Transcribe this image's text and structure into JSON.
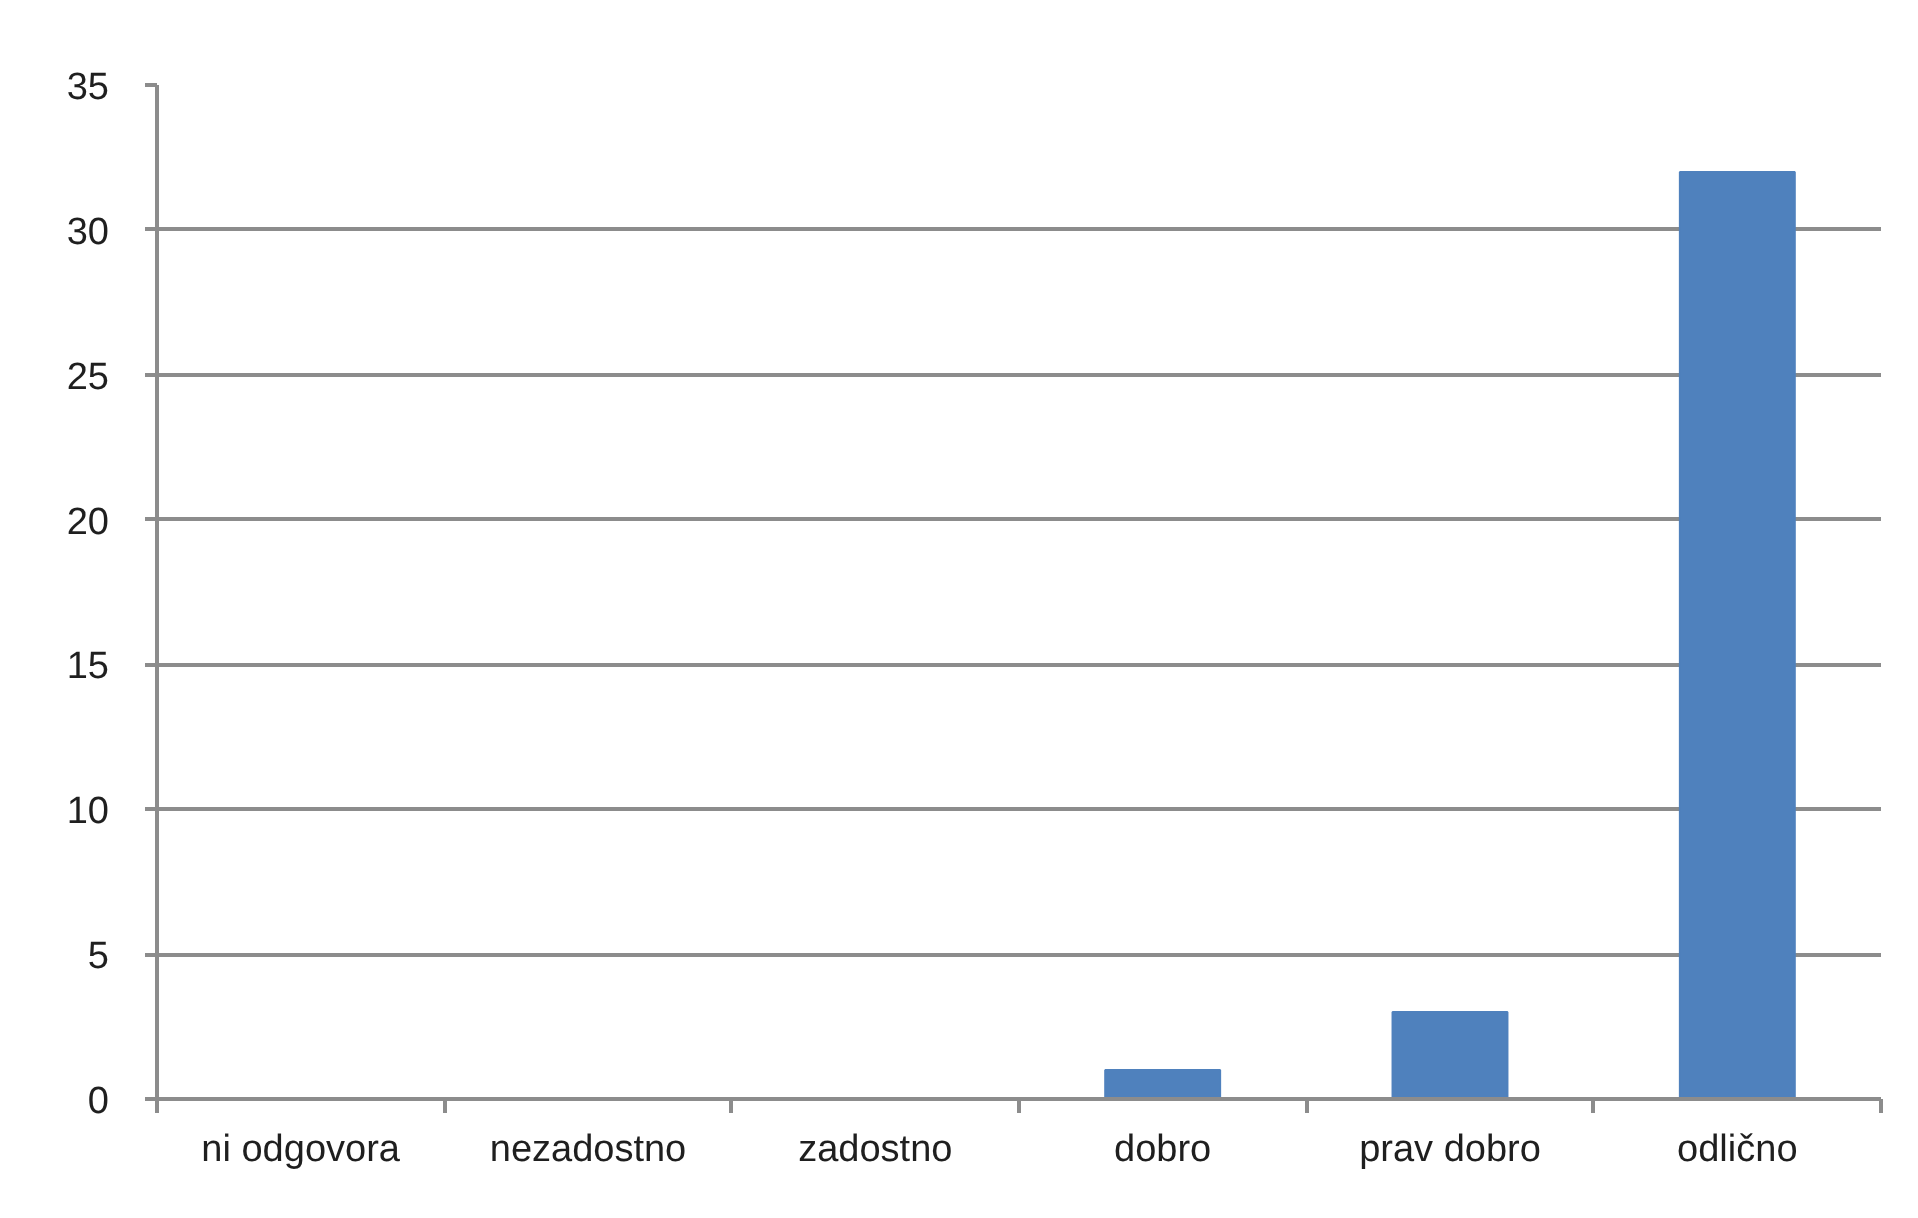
{
  "chart_data": {
    "type": "bar",
    "categories": [
      "ni odgovora",
      "nezadostno",
      "zadostno",
      "dobro",
      "prav dobro",
      "odlično"
    ],
    "values": [
      0,
      0,
      0,
      1,
      3,
      32
    ],
    "color": "#4f81bd",
    "ylim": [
      0,
      35
    ],
    "yticks": [
      0,
      5,
      10,
      15,
      20,
      25,
      30,
      35
    ],
    "grid": "y"
  }
}
